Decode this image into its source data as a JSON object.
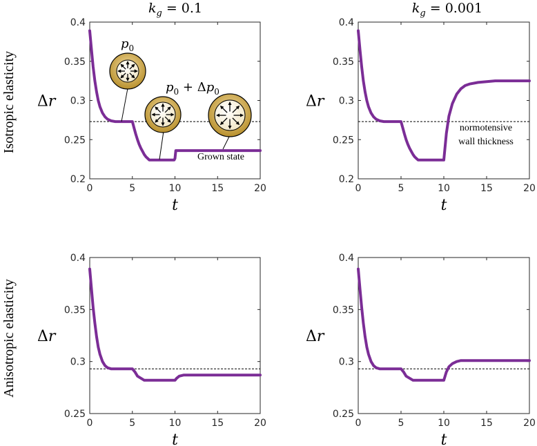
{
  "figure": {
    "column_titles": [
      {
        "prefix": "k",
        "sub": "g",
        "rest": " = 0.1"
      },
      {
        "prefix": "k",
        "sub": "g",
        "rest": " = 0.001"
      }
    ],
    "row_labels": [
      "Isotropic elasticity",
      "Anisotropic elasticity"
    ],
    "annotations": {
      "p0_base": "p",
      "p0_sub": "0",
      "p0dp_base": "p",
      "p0dp_sub": "0",
      "p0dp_plus": " + Δ",
      "p0dp_base2": "p",
      "p0dp_sub2": "0",
      "grown_state": "Grown state",
      "normotensive_line1": "normotensive",
      "normotensive_line2": "wall thickness"
    },
    "colors": {
      "curve": "#7b2d96",
      "ring_outer": "#c9a23a",
      "ring_inner": "#fbf6e6"
    }
  },
  "chart_data": [
    {
      "type": "line",
      "panel": "top-left",
      "xlabel": "t",
      "ylabel": "Δr",
      "xlim": [
        0,
        20
      ],
      "ylim": [
        0.2,
        0.4
      ],
      "xticks": [
        0,
        5,
        10,
        15,
        20
      ],
      "yticks": [
        0.2,
        0.25,
        0.3,
        0.35,
        0.4
      ],
      "xtick_labels": [
        "0",
        "5",
        "10",
        "15",
        "20"
      ],
      "ytick_labels": [
        "0.2",
        "0.25",
        "0.3",
        "0.35",
        "0.4"
      ],
      "reference_line": 0.273,
      "series": [
        {
          "name": "Δr",
          "x": [
            0,
            0.2,
            0.4,
            0.6,
            0.8,
            1,
            1.2,
            1.5,
            1.8,
            2.1,
            2.5,
            3,
            4,
            5,
            5.2,
            5.4,
            5.6,
            5.8,
            6,
            6.2,
            6.4,
            6.6,
            6.8,
            7,
            8,
            9,
            9.9,
            10,
            10.1,
            11,
            13,
            15,
            18,
            20
          ],
          "y": [
            0.389,
            0.365,
            0.343,
            0.325,
            0.311,
            0.3,
            0.292,
            0.284,
            0.279,
            0.276,
            0.274,
            0.273,
            0.273,
            0.273,
            0.265,
            0.257,
            0.25,
            0.244,
            0.239,
            0.235,
            0.231,
            0.228,
            0.226,
            0.224,
            0.224,
            0.224,
            0.224,
            0.226,
            0.236,
            0.236,
            0.236,
            0.236,
            0.236,
            0.236
          ]
        }
      ]
    },
    {
      "type": "line",
      "panel": "top-right",
      "xlabel": "t",
      "ylabel": "Δr",
      "xlim": [
        0,
        20
      ],
      "ylim": [
        0.2,
        0.4
      ],
      "xticks": [
        0,
        5,
        10,
        15,
        20
      ],
      "yticks": [
        0.2,
        0.25,
        0.3,
        0.35,
        0.4
      ],
      "xtick_labels": [
        "0",
        "5",
        "10",
        "15",
        "20"
      ],
      "ytick_labels": [
        "0.2",
        "0.25",
        "0.3",
        "0.35",
        "0.4"
      ],
      "reference_line": 0.273,
      "series": [
        {
          "name": "Δr",
          "x": [
            0,
            0.2,
            0.4,
            0.6,
            0.8,
            1,
            1.2,
            1.5,
            1.8,
            2.1,
            2.5,
            3,
            4,
            5,
            5.2,
            5.4,
            5.6,
            5.8,
            6,
            6.2,
            6.4,
            6.6,
            6.8,
            7,
            8,
            9,
            9.9,
            10,
            10.3,
            10.6,
            11,
            11.5,
            12,
            12.5,
            13,
            14,
            15,
            16,
            18,
            20
          ],
          "y": [
            0.389,
            0.365,
            0.343,
            0.325,
            0.311,
            0.3,
            0.292,
            0.284,
            0.279,
            0.276,
            0.274,
            0.273,
            0.273,
            0.273,
            0.265,
            0.257,
            0.25,
            0.244,
            0.239,
            0.235,
            0.231,
            0.228,
            0.226,
            0.224,
            0.224,
            0.224,
            0.224,
            0.224,
            0.258,
            0.28,
            0.296,
            0.308,
            0.315,
            0.319,
            0.321,
            0.323,
            0.324,
            0.325,
            0.325,
            0.325
          ]
        }
      ]
    },
    {
      "type": "line",
      "panel": "bottom-left",
      "xlabel": "t",
      "ylabel": "Δr",
      "xlim": [
        0,
        20
      ],
      "ylim": [
        0.25,
        0.4
      ],
      "xticks": [
        0,
        5,
        10,
        15,
        20
      ],
      "yticks": [
        0.25,
        0.3,
        0.35,
        0.4
      ],
      "xtick_labels": [
        "0",
        "5",
        "10",
        "15",
        "20"
      ],
      "ytick_labels": [
        "0.25",
        "0.3",
        "0.35",
        "0.4"
      ],
      "reference_line": 0.293,
      "series": [
        {
          "name": "Δr",
          "x": [
            0,
            0.2,
            0.4,
            0.6,
            0.8,
            1,
            1.2,
            1.5,
            1.8,
            2.1,
            2.5,
            3,
            4,
            5,
            5.3,
            5.6,
            6,
            6.4,
            6.8,
            7.2,
            8,
            9,
            10,
            10.2,
            10.5,
            11,
            12,
            15,
            20
          ],
          "y": [
            0.389,
            0.37,
            0.352,
            0.337,
            0.324,
            0.314,
            0.307,
            0.3,
            0.296,
            0.294,
            0.293,
            0.293,
            0.293,
            0.293,
            0.29,
            0.286,
            0.284,
            0.282,
            0.282,
            0.282,
            0.282,
            0.282,
            0.282,
            0.284,
            0.286,
            0.287,
            0.287,
            0.287,
            0.287
          ]
        }
      ]
    },
    {
      "type": "line",
      "panel": "bottom-right",
      "xlabel": "t",
      "ylabel": "Δr",
      "xlim": [
        0,
        20
      ],
      "ylim": [
        0.25,
        0.4
      ],
      "xticks": [
        0,
        5,
        10,
        15,
        20
      ],
      "yticks": [
        0.25,
        0.3,
        0.35,
        0.4
      ],
      "xtick_labels": [
        "0",
        "5",
        "10",
        "15",
        "20"
      ],
      "ytick_labels": [
        "0.25",
        "0.3",
        "0.35",
        "0.4"
      ],
      "reference_line": 0.293,
      "series": [
        {
          "name": "Δr",
          "x": [
            0,
            0.2,
            0.4,
            0.6,
            0.8,
            1,
            1.2,
            1.5,
            1.8,
            2.1,
            2.5,
            3,
            4,
            5,
            5.3,
            5.6,
            6,
            6.4,
            6.8,
            7.2,
            8,
            9,
            10,
            10.3,
            10.6,
            11,
            11.5,
            12,
            13,
            14,
            15,
            17,
            20
          ],
          "y": [
            0.389,
            0.37,
            0.352,
            0.337,
            0.324,
            0.314,
            0.307,
            0.3,
            0.296,
            0.294,
            0.293,
            0.293,
            0.293,
            0.293,
            0.29,
            0.286,
            0.284,
            0.282,
            0.282,
            0.282,
            0.282,
            0.282,
            0.282,
            0.29,
            0.295,
            0.298,
            0.3,
            0.301,
            0.301,
            0.301,
            0.301,
            0.301,
            0.301
          ]
        }
      ]
    }
  ]
}
